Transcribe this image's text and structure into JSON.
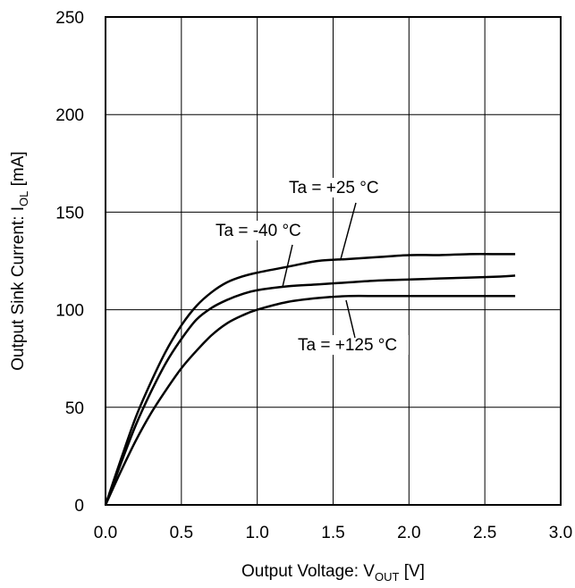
{
  "chart_data": {
    "type": "line",
    "xlabel": "Output Voltage: V",
    "xlabel_sub": "OUT",
    "xlabel_unit": " [V]",
    "ylabel": "Output Sink Current:  I",
    "ylabel_sub": "OL",
    "ylabel_unit": " [mA]",
    "xlim": [
      0,
      3.0
    ],
    "ylim": [
      0,
      250
    ],
    "xticks": [
      "0.0",
      "0.5",
      "1.0",
      "1.5",
      "2.0",
      "2.5",
      "3.0"
    ],
    "yticks": [
      "0",
      "50",
      "100",
      "150",
      "200",
      "250"
    ],
    "grid": true,
    "series": [
      {
        "name": "Ta = +25 °C",
        "x": [
          0,
          0.1,
          0.2,
          0.3,
          0.4,
          0.5,
          0.6,
          0.7,
          0.8,
          0.9,
          1.0,
          1.2,
          1.4,
          1.6,
          1.8,
          2.0,
          2.2,
          2.4,
          2.6,
          2.7
        ],
        "y": [
          0,
          23,
          45,
          63,
          79,
          92,
          102,
          109,
          114,
          117,
          119,
          122,
          125,
          126,
          127,
          128,
          128,
          128.5,
          128.5,
          128.5
        ]
      },
      {
        "name": "Ta = -40 °C",
        "x": [
          0,
          0.1,
          0.2,
          0.3,
          0.4,
          0.5,
          0.6,
          0.7,
          0.8,
          0.9,
          1.0,
          1.2,
          1.4,
          1.6,
          1.8,
          2.0,
          2.2,
          2.4,
          2.6,
          2.7
        ],
        "y": [
          0,
          21,
          41,
          58,
          73,
          85,
          95,
          101,
          105,
          108,
          110,
          112,
          113,
          114,
          115,
          115.5,
          116,
          116.5,
          117,
          117.5
        ]
      },
      {
        "name": "Ta = +125 °C",
        "x": [
          0,
          0.1,
          0.2,
          0.3,
          0.4,
          0.5,
          0.6,
          0.7,
          0.8,
          0.9,
          1.0,
          1.2,
          1.4,
          1.6,
          1.8,
          2.0,
          2.2,
          2.4,
          2.6,
          2.7
        ],
        "y": [
          0,
          17,
          33,
          47,
          59,
          70,
          79,
          87,
          93,
          97,
          100,
          104,
          106,
          107,
          107,
          107,
          107,
          107,
          107,
          107
        ]
      }
    ],
    "annotations": [
      {
        "text": "Ta = +25 °C",
        "series": 0
      },
      {
        "text": "Ta = -40 °C",
        "series": 1
      },
      {
        "text": "Ta = +125 °C",
        "series": 2
      }
    ]
  }
}
